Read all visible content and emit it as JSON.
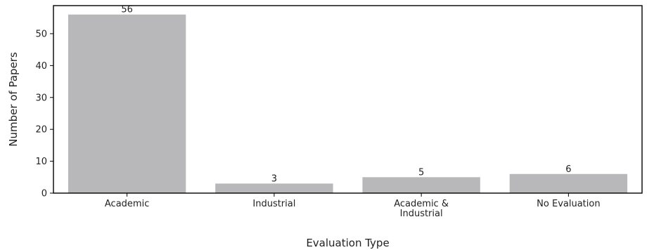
{
  "chart_data": {
    "type": "bar",
    "categories": [
      [
        "Academic"
      ],
      [
        "Industrial"
      ],
      [
        "Academic &",
        "Industrial"
      ],
      [
        "No Evaluation"
      ]
    ],
    "values": [
      56,
      3,
      5,
      6
    ],
    "data_labels": [
      "56",
      "3",
      "5",
      "6"
    ],
    "xlabel": "Evaluation Type",
    "ylabel": "Number of Papers",
    "ylim": [
      0,
      58.8
    ],
    "yticks": [
      0,
      10,
      20,
      30,
      40,
      50
    ],
    "grid": false,
    "bar_color": "#b8b8ba",
    "axis_color": "#000000"
  }
}
